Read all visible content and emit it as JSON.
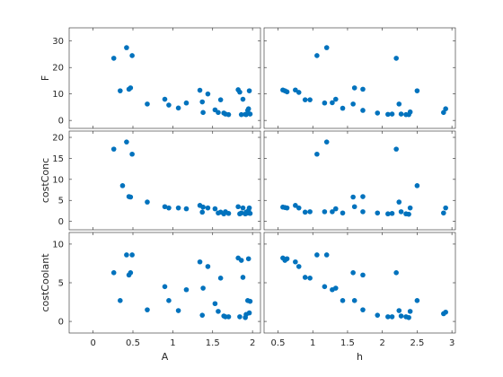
{
  "chart_data": {
    "type": "scatter",
    "title": "",
    "marker_color": "#0072BD",
    "x_variables": [
      {
        "label": "A",
        "ticks": [
          0,
          0.5,
          1,
          1.5,
          2
        ],
        "tick_labels": [
          "0",
          "0.5",
          "1",
          "1.5",
          "2"
        ],
        "xlim": [
          -0.3,
          2.1
        ]
      },
      {
        "label": "h",
        "ticks": [
          0.5,
          1,
          1.5,
          2,
          2.5,
          3
        ],
        "tick_labels": [
          "0.5",
          "1",
          "1.5",
          "2",
          "2.5",
          "3"
        ],
        "xlim": [
          0.3,
          3.05
        ]
      }
    ],
    "y_variables": [
      {
        "label": "F",
        "ticks": [
          0,
          10,
          20,
          30
        ],
        "tick_labels": [
          "0",
          "10",
          "20",
          "30"
        ],
        "ylim": [
          -3,
          35
        ]
      },
      {
        "label": "costConc",
        "ticks": [
          0,
          5,
          10,
          15,
          20
        ],
        "tick_labels": [
          "0",
          "5",
          "10",
          "15",
          "20"
        ],
        "ylim": [
          -2,
          21.5
        ]
      },
      {
        "label": "costCoolant",
        "ticks": [
          0,
          5,
          10
        ],
        "tick_labels": [
          "0",
          "5",
          "10"
        ],
        "ylim": [
          -1.5,
          11.5
        ]
      }
    ],
    "panels": [
      {
        "row": 0,
        "col": 0,
        "points": [
          [
            0.26,
            23.5
          ],
          [
            0.34,
            11.2
          ],
          [
            0.42,
            27.5
          ],
          [
            0.45,
            11.8
          ],
          [
            0.47,
            12.3
          ],
          [
            0.49,
            24.5
          ],
          [
            0.68,
            6.2
          ],
          [
            0.9,
            8
          ],
          [
            0.95,
            5.8
          ],
          [
            1.07,
            4.7
          ],
          [
            1.17,
            6.6
          ],
          [
            1.34,
            11.4
          ],
          [
            1.37,
            7
          ],
          [
            1.38,
            3
          ],
          [
            1.44,
            10
          ],
          [
            1.53,
            4
          ],
          [
            1.57,
            3
          ],
          [
            1.6,
            7.8
          ],
          [
            1.64,
            2.8
          ],
          [
            1.66,
            2.4
          ],
          [
            1.7,
            2.2
          ],
          [
            1.82,
            11.6
          ],
          [
            1.84,
            10.7
          ],
          [
            1.86,
            2.2
          ],
          [
            1.88,
            8
          ],
          [
            1.91,
            2.3
          ],
          [
            1.94,
            3.8
          ],
          [
            1.95,
            4.4
          ],
          [
            1.96,
            11.2
          ],
          [
            1.97,
            2.4
          ],
          [
            1.92,
            2.2
          ]
        ]
      },
      {
        "row": 0,
        "col": 1,
        "points": [
          [
            0.57,
            11.5
          ],
          [
            0.6,
            11.2
          ],
          [
            0.63,
            10.8
          ],
          [
            0.75,
            11.5
          ],
          [
            0.8,
            10.6
          ],
          [
            0.89,
            7.8
          ],
          [
            0.96,
            7.8
          ],
          [
            1.06,
            24.5
          ],
          [
            1.17,
            6.6
          ],
          [
            1.2,
            27.5
          ],
          [
            1.28,
            6.7
          ],
          [
            1.33,
            8
          ],
          [
            1.43,
            4.6
          ],
          [
            1.58,
            6.2
          ],
          [
            1.6,
            12.3
          ],
          [
            1.72,
            11.8
          ],
          [
            1.72,
            3.8
          ],
          [
            1.93,
            2.8
          ],
          [
            2.08,
            2.3
          ],
          [
            2.14,
            2.4
          ],
          [
            2.2,
            23.5
          ],
          [
            2.24,
            6.2
          ],
          [
            2.27,
            2.4
          ],
          [
            2.34,
            2.2
          ],
          [
            2.4,
            3.2
          ],
          [
            2.5,
            11.2
          ],
          [
            2.38,
            2.2
          ],
          [
            2.88,
            3
          ],
          [
            2.91,
            4.4
          ]
        ]
      },
      {
        "row": 1,
        "col": 0,
        "points": [
          [
            0.26,
            17.2
          ],
          [
            0.37,
            8.5
          ],
          [
            0.42,
            18.9
          ],
          [
            0.45,
            5.9
          ],
          [
            0.47,
            5.8
          ],
          [
            0.49,
            16
          ],
          [
            0.68,
            4.6
          ],
          [
            0.9,
            3.5
          ],
          [
            0.95,
            3.2
          ],
          [
            1.07,
            3.2
          ],
          [
            1.17,
            3
          ],
          [
            1.34,
            3.8
          ],
          [
            1.37,
            2.2
          ],
          [
            1.38,
            3.4
          ],
          [
            1.44,
            3.2
          ],
          [
            1.53,
            3
          ],
          [
            1.57,
            2
          ],
          [
            1.6,
            2.2
          ],
          [
            1.64,
            1.8
          ],
          [
            1.66,
            2.3
          ],
          [
            1.7,
            1.9
          ],
          [
            1.82,
            3.5
          ],
          [
            1.84,
            1.8
          ],
          [
            1.86,
            2
          ],
          [
            1.88,
            3.2
          ],
          [
            1.91,
            1.8
          ],
          [
            1.94,
            2
          ],
          [
            1.95,
            2.6
          ],
          [
            1.96,
            3.2
          ],
          [
            1.97,
            1.9
          ],
          [
            1.92,
            2.2
          ]
        ]
      },
      {
        "row": 1,
        "col": 1,
        "points": [
          [
            0.57,
            3.4
          ],
          [
            0.6,
            3.3
          ],
          [
            0.63,
            3.2
          ],
          [
            0.75,
            3.8
          ],
          [
            0.8,
            3.2
          ],
          [
            0.89,
            2.2
          ],
          [
            0.96,
            2.3
          ],
          [
            1.06,
            16
          ],
          [
            1.17,
            2.3
          ],
          [
            1.2,
            18.9
          ],
          [
            1.28,
            2.3
          ],
          [
            1.33,
            3
          ],
          [
            1.43,
            2
          ],
          [
            1.58,
            5.8
          ],
          [
            1.6,
            3.5
          ],
          [
            1.72,
            5.9
          ],
          [
            1.72,
            2.3
          ],
          [
            1.93,
            2
          ],
          [
            2.08,
            1.8
          ],
          [
            2.14,
            1.9
          ],
          [
            2.2,
            17.2
          ],
          [
            2.24,
            4.6
          ],
          [
            2.27,
            2.3
          ],
          [
            2.34,
            1.8
          ],
          [
            2.4,
            3.2
          ],
          [
            2.5,
            8.5
          ],
          [
            2.38,
            1.7
          ],
          [
            2.88,
            2
          ],
          [
            2.91,
            3.2
          ]
        ]
      },
      {
        "row": 2,
        "col": 0,
        "points": [
          [
            0.26,
            6.3
          ],
          [
            0.34,
            2.7
          ],
          [
            0.42,
            8.6
          ],
          [
            0.45,
            6
          ],
          [
            0.47,
            6.3
          ],
          [
            0.49,
            8.6
          ],
          [
            0.68,
            1.5
          ],
          [
            0.9,
            4.5
          ],
          [
            0.95,
            2.7
          ],
          [
            1.07,
            1.4
          ],
          [
            1.17,
            4.1
          ],
          [
            1.34,
            7.7
          ],
          [
            1.37,
            0.8
          ],
          [
            1.38,
            4.3
          ],
          [
            1.44,
            7.1
          ],
          [
            1.53,
            2.3
          ],
          [
            1.57,
            1.3
          ],
          [
            1.6,
            5.6
          ],
          [
            1.64,
            0.7
          ],
          [
            1.66,
            0.6
          ],
          [
            1.7,
            0.6
          ],
          [
            1.82,
            8.2
          ],
          [
            1.84,
            0.6
          ],
          [
            1.86,
            7.9
          ],
          [
            1.88,
            5.7
          ],
          [
            1.91,
            0.5
          ],
          [
            1.94,
            2.7
          ],
          [
            1.95,
            8.1
          ],
          [
            1.96,
            1.1
          ],
          [
            1.97,
            2.6
          ],
          [
            1.92,
            0.9
          ]
        ]
      },
      {
        "row": 2,
        "col": 1,
        "points": [
          [
            0.57,
            8.2
          ],
          [
            0.6,
            7.9
          ],
          [
            0.63,
            8.1
          ],
          [
            0.75,
            7.7
          ],
          [
            0.8,
            7.1
          ],
          [
            0.89,
            5.7
          ],
          [
            0.96,
            5.6
          ],
          [
            1.06,
            8.6
          ],
          [
            1.17,
            4.5
          ],
          [
            1.2,
            8.6
          ],
          [
            1.28,
            4.1
          ],
          [
            1.33,
            4.3
          ],
          [
            1.43,
            2.7
          ],
          [
            1.58,
            6.3
          ],
          [
            1.6,
            2.7
          ],
          [
            1.72,
            6
          ],
          [
            1.72,
            1.5
          ],
          [
            1.93,
            0.8
          ],
          [
            2.08,
            0.6
          ],
          [
            2.14,
            0.6
          ],
          [
            2.2,
            6.3
          ],
          [
            2.24,
            1.4
          ],
          [
            2.27,
            0.7
          ],
          [
            2.34,
            0.6
          ],
          [
            2.4,
            1.3
          ],
          [
            2.5,
            2.7
          ],
          [
            2.38,
            0.5
          ],
          [
            2.88,
            1
          ],
          [
            2.91,
            1.2
          ]
        ]
      }
    ]
  }
}
